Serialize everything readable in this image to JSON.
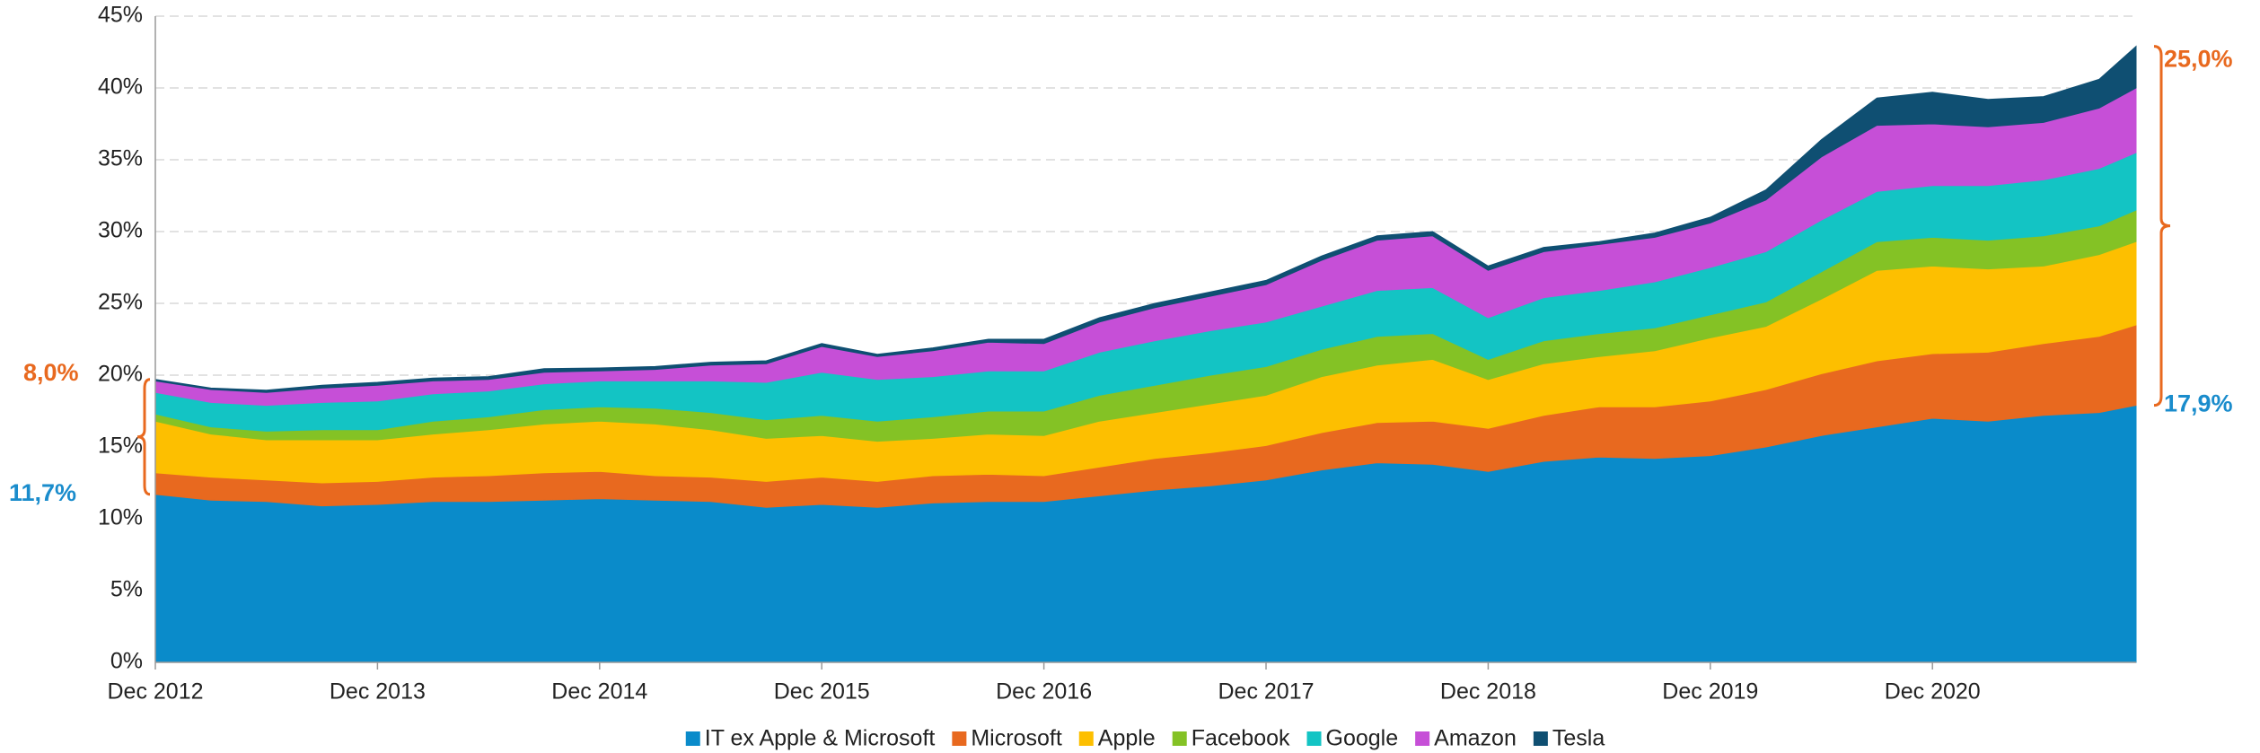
{
  "chart_data": {
    "type": "stacked_area",
    "x": [
      "2012-12",
      "2013-03",
      "2013-06",
      "2013-09",
      "2013-12",
      "2014-03",
      "2014-06",
      "2014-09",
      "2014-12",
      "2015-03",
      "2015-06",
      "2015-09",
      "2015-12",
      "2016-03",
      "2016-06",
      "2016-09",
      "2016-12",
      "2017-03",
      "2017-06",
      "2017-09",
      "2017-12",
      "2018-03",
      "2018-06",
      "2018-09",
      "2018-12",
      "2019-03",
      "2019-06",
      "2019-09",
      "2019-12",
      "2020-03",
      "2020-06",
      "2020-09",
      "2020-12",
      "2021-03",
      "2021-06",
      "2021-09",
      "2021-11"
    ],
    "xlim": [
      "2012-12",
      "2021-11"
    ],
    "xticks": [
      {
        "value": "2012-12",
        "label": "Dec 2012"
      },
      {
        "value": "2013-12",
        "label": "Dec 2013"
      },
      {
        "value": "2014-12",
        "label": "Dec 2014"
      },
      {
        "value": "2015-12",
        "label": "Dec 2015"
      },
      {
        "value": "2016-12",
        "label": "Dec 2016"
      },
      {
        "value": "2017-12",
        "label": "Dec 2017"
      },
      {
        "value": "2018-12",
        "label": "Dec 2018"
      },
      {
        "value": "2019-12",
        "label": "Dec 2019"
      },
      {
        "value": "2020-12",
        "label": "Dec 2020"
      }
    ],
    "ylim": [
      0,
      45
    ],
    "yticks": [
      {
        "value": 0,
        "label": "0%"
      },
      {
        "value": 5,
        "label": "5%"
      },
      {
        "value": 10,
        "label": "10%"
      },
      {
        "value": 15,
        "label": "15%"
      },
      {
        "value": 20,
        "label": "20%"
      },
      {
        "value": 25,
        "label": "25%"
      },
      {
        "value": 30,
        "label": "30%"
      },
      {
        "value": 35,
        "label": "35%"
      },
      {
        "value": 40,
        "label": "40%"
      },
      {
        "value": 45,
        "label": "45%"
      }
    ],
    "grid": true,
    "legend": "bottom",
    "series": [
      {
        "name": "IT ex Apple & Microsoft",
        "color": "#0a8bca",
        "values": [
          11.7,
          11.3,
          11.2,
          10.9,
          11.0,
          11.2,
          11.2,
          11.3,
          11.4,
          11.3,
          11.2,
          10.8,
          11.0,
          10.8,
          11.1,
          11.2,
          11.2,
          11.6,
          12.0,
          12.3,
          12.7,
          13.4,
          13.9,
          13.8,
          13.3,
          14.0,
          14.3,
          14.2,
          14.4,
          15.0,
          15.8,
          16.4,
          17.0,
          16.8,
          17.2,
          17.4,
          17.9
        ]
      },
      {
        "name": "Microsoft",
        "color": "#e8691f",
        "values": [
          1.5,
          1.6,
          1.5,
          1.6,
          1.6,
          1.7,
          1.8,
          1.9,
          1.9,
          1.7,
          1.7,
          1.8,
          1.9,
          1.8,
          1.9,
          1.9,
          1.8,
          2.0,
          2.2,
          2.3,
          2.4,
          2.6,
          2.8,
          3.0,
          3.0,
          3.2,
          3.5,
          3.6,
          3.8,
          4.0,
          4.3,
          4.6,
          4.5,
          4.8,
          5.0,
          5.3,
          5.6
        ]
      },
      {
        "name": "Apple",
        "color": "#fdbf00",
        "values": [
          3.6,
          3.0,
          2.8,
          3.0,
          2.9,
          3.0,
          3.2,
          3.4,
          3.5,
          3.6,
          3.3,
          3.0,
          2.9,
          2.8,
          2.6,
          2.8,
          2.8,
          3.2,
          3.2,
          3.4,
          3.5,
          3.9,
          4.0,
          4.3,
          3.4,
          3.6,
          3.5,
          3.9,
          4.4,
          4.4,
          5.2,
          6.3,
          6.1,
          5.8,
          5.4,
          5.7,
          5.8
        ]
      },
      {
        "name": "Facebook",
        "color": "#84c225",
        "values": [
          0.5,
          0.5,
          0.6,
          0.7,
          0.7,
          0.9,
          0.9,
          1.0,
          1.0,
          1.1,
          1.2,
          1.3,
          1.4,
          1.4,
          1.5,
          1.6,
          1.7,
          1.8,
          1.9,
          2.0,
          2.0,
          1.9,
          2.0,
          1.8,
          1.4,
          1.6,
          1.6,
          1.6,
          1.6,
          1.7,
          1.9,
          2.0,
          2.0,
          2.0,
          2.1,
          2.0,
          2.2
        ]
      },
      {
        "name": "Google",
        "color": "#13c4c4",
        "values": [
          1.5,
          1.7,
          1.8,
          1.9,
          2.0,
          1.9,
          1.8,
          1.8,
          1.8,
          1.9,
          2.2,
          2.6,
          3.0,
          2.9,
          2.8,
          2.8,
          2.8,
          3.0,
          3.1,
          3.1,
          3.1,
          3.0,
          3.2,
          3.2,
          2.9,
          3.0,
          3.0,
          3.2,
          3.3,
          3.5,
          3.6,
          3.5,
          3.6,
          3.8,
          3.9,
          4.0,
          4.0
        ]
      },
      {
        "name": "Amazon",
        "color": "#c64fd7",
        "values": [
          0.8,
          0.9,
          0.9,
          1.0,
          1.1,
          0.9,
          0.8,
          0.8,
          0.7,
          0.8,
          1.1,
          1.3,
          1.8,
          1.6,
          1.8,
          2.0,
          1.9,
          2.1,
          2.3,
          2.4,
          2.6,
          3.2,
          3.5,
          3.6,
          3.3,
          3.2,
          3.2,
          3.1,
          3.1,
          3.6,
          4.4,
          4.6,
          4.3,
          4.1,
          4.0,
          4.2,
          4.5
        ]
      },
      {
        "name": "Tesla",
        "color": "#0f4f72",
        "values": [
          0.1,
          0.1,
          0.15,
          0.2,
          0.2,
          0.2,
          0.2,
          0.25,
          0.2,
          0.2,
          0.2,
          0.2,
          0.2,
          0.15,
          0.2,
          0.2,
          0.3,
          0.3,
          0.3,
          0.3,
          0.3,
          0.3,
          0.3,
          0.3,
          0.3,
          0.3,
          0.2,
          0.3,
          0.4,
          0.7,
          1.2,
          1.9,
          2.2,
          1.9,
          1.8,
          2.0,
          2.9
        ]
      }
    ],
    "annotations": [
      {
        "label": "8,0%",
        "value": 8.0,
        "color": "#e8691f",
        "side": "left",
        "kind": "span"
      },
      {
        "label": "11,7%",
        "value": 11.7,
        "color": "#1a8ccc",
        "side": "left",
        "kind": "level"
      },
      {
        "label": "25,0%",
        "value": 25.0,
        "color": "#e8691f",
        "side": "right",
        "kind": "span"
      },
      {
        "label": "17,9%",
        "value": 17.9,
        "color": "#1a8ccc",
        "side": "right",
        "kind": "level"
      }
    ]
  }
}
